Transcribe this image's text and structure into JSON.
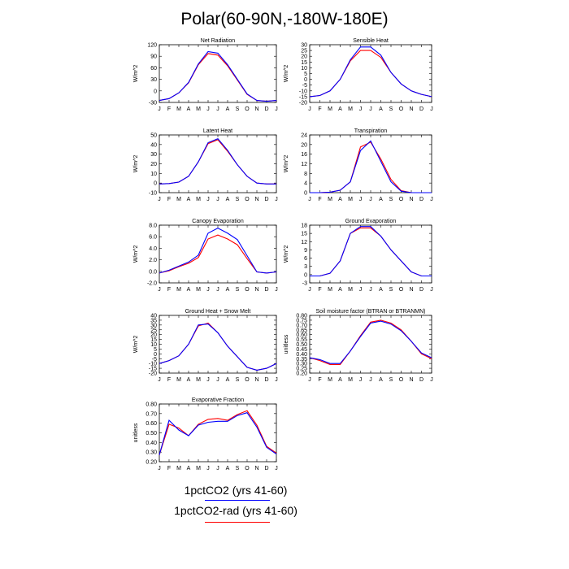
{
  "figure": {
    "title": "Polar(60-90N,-180W-180E)",
    "legend": [
      {
        "label": "1pctCO2 (yrs 41-60)",
        "color": "#0000ff"
      },
      {
        "label": "1pctCO2-rad (yrs 41-60)",
        "color": "#ff0000"
      }
    ]
  },
  "chart_data": [
    {
      "type": "line",
      "title": "Net Radiation",
      "ylabel": "W/m^2",
      "categories": [
        "J",
        "F",
        "M",
        "A",
        "M",
        "J",
        "J",
        "A",
        "S",
        "O",
        "N",
        "D",
        "J"
      ],
      "ylim": [
        -30,
        120
      ],
      "yticks": [
        -30,
        0,
        30,
        60,
        90,
        120
      ],
      "yticklabels": [
        "-30",
        "0",
        "30",
        "60",
        "90",
        "120"
      ],
      "series": [
        {
          "color": "#0000ff",
          "values": [
            -25,
            -20,
            -5,
            22,
            70,
            102,
            98,
            68,
            30,
            -8,
            -25,
            -27,
            -25
          ]
        },
        {
          "color": "#ff0000",
          "values": [
            -25,
            -20,
            -5,
            21,
            68,
            97,
            93,
            65,
            28,
            -9,
            -25,
            -27,
            -25
          ]
        }
      ]
    },
    {
      "type": "line",
      "title": "Sensible Heat",
      "ylabel": "W/m^2",
      "categories": [
        "J",
        "F",
        "M",
        "A",
        "M",
        "J",
        "J",
        "A",
        "S",
        "O",
        "N",
        "D",
        "J"
      ],
      "ylim": [
        -20,
        30
      ],
      "yticks": [
        -20,
        -15,
        -10,
        -5,
        0,
        5,
        10,
        15,
        20,
        25,
        30
      ],
      "yticklabels": [
        "-20",
        "-15",
        "-10",
        "-5",
        "0",
        "5",
        "10",
        "15",
        "20",
        "25",
        "30"
      ],
      "series": [
        {
          "color": "#0000ff",
          "values": [
            -15,
            -14,
            -10,
            0,
            17,
            28,
            28,
            21,
            6,
            -4,
            -10,
            -13,
            -15
          ]
        },
        {
          "color": "#ff0000",
          "values": [
            -15,
            -14,
            -10,
            0,
            16,
            25,
            25,
            19,
            6,
            -4,
            -10,
            -13,
            -15
          ]
        }
      ]
    },
    {
      "type": "line",
      "title": "Latent Heat",
      "ylabel": "W/m^2",
      "categories": [
        "J",
        "F",
        "M",
        "A",
        "M",
        "J",
        "J",
        "A",
        "S",
        "O",
        "N",
        "D",
        "J"
      ],
      "ylim": [
        -10,
        50
      ],
      "yticks": [
        -10,
        0,
        10,
        20,
        30,
        40,
        50
      ],
      "yticklabels": [
        "-10",
        "0",
        "10",
        "20",
        "30",
        "40",
        "50"
      ],
      "series": [
        {
          "color": "#0000ff",
          "values": [
            -1,
            -0.5,
            1,
            7,
            22,
            42,
            46,
            34,
            19,
            7,
            0,
            -1,
            -1
          ]
        },
        {
          "color": "#ff0000",
          "values": [
            -1,
            -0.5,
            1,
            7,
            22,
            41,
            45,
            33,
            19,
            7,
            0,
            -1,
            -1
          ]
        }
      ]
    },
    {
      "type": "line",
      "title": "Transpiration",
      "ylabel": "W/m^2",
      "categories": [
        "J",
        "F",
        "M",
        "A",
        "M",
        "J",
        "J",
        "A",
        "S",
        "O",
        "N",
        "D",
        "J"
      ],
      "ylim": [
        0,
        24
      ],
      "yticks": [
        0,
        4,
        8,
        12,
        16,
        20,
        24
      ],
      "yticklabels": [
        "0",
        "4",
        "8",
        "12",
        "16",
        "20",
        "24"
      ],
      "series": [
        {
          "color": "#0000ff",
          "values": [
            0,
            0,
            0.2,
            1,
            4.5,
            17.5,
            21.5,
            13,
            4.5,
            0.6,
            0,
            0,
            0
          ]
        },
        {
          "color": "#ff0000",
          "values": [
            0,
            0,
            0.2,
            1,
            4.5,
            19,
            21,
            14,
            5.5,
            0.8,
            0,
            0,
            0
          ]
        }
      ]
    },
    {
      "type": "line",
      "title": "Canopy Evaporation",
      "ylabel": "W/m^2",
      "categories": [
        "J",
        "F",
        "M",
        "A",
        "M",
        "J",
        "J",
        "A",
        "S",
        "O",
        "N",
        "D",
        "J"
      ],
      "ylim": [
        -2,
        8
      ],
      "yticks": [
        -2,
        0,
        2,
        4,
        6,
        8
      ],
      "yticklabels": [
        "-2.0",
        "0.0",
        "2.0",
        "4.0",
        "6.0",
        "8.0"
      ],
      "series": [
        {
          "color": "#0000ff",
          "values": [
            -0.3,
            0.2,
            0.9,
            1.6,
            2.8,
            6.6,
            7.5,
            6.6,
            5.5,
            2.7,
            -0.1,
            -0.3,
            -0.1
          ]
        },
        {
          "color": "#ff0000",
          "values": [
            -0.3,
            0.1,
            0.8,
            1.4,
            2.4,
            5.6,
            6.3,
            5.6,
            4.6,
            2.2,
            -0.1,
            -0.3,
            -0.1
          ]
        }
      ]
    },
    {
      "type": "line",
      "title": "Ground Evaporation",
      "ylabel": "W/m^2",
      "categories": [
        "J",
        "F",
        "M",
        "A",
        "M",
        "J",
        "J",
        "A",
        "S",
        "O",
        "N",
        "D",
        "J"
      ],
      "ylim": [
        -3,
        18
      ],
      "yticks": [
        -3,
        0,
        3,
        6,
        9,
        12,
        15,
        18
      ],
      "yticklabels": [
        "-3",
        "0",
        "3",
        "6",
        "9",
        "12",
        "15",
        "18"
      ],
      "series": [
        {
          "color": "#0000ff",
          "values": [
            -0.5,
            -0.5,
            0.5,
            5,
            15,
            17.5,
            17.5,
            14,
            9,
            5,
            1,
            -0.5,
            -0.5
          ]
        },
        {
          "color": "#ff0000",
          "values": [
            -0.5,
            -0.5,
            0.5,
            5,
            15,
            17,
            17,
            14,
            9,
            5,
            1,
            -0.5,
            -0.5
          ]
        }
      ]
    },
    {
      "type": "line",
      "title": "Ground Heat + Snow Melt",
      "ylabel": "W/m^2",
      "categories": [
        "J",
        "F",
        "M",
        "A",
        "M",
        "J",
        "J",
        "A",
        "S",
        "O",
        "N",
        "D",
        "J"
      ],
      "ylim": [
        -20,
        40
      ],
      "yticks": [
        -20,
        -15,
        -10,
        -5,
        0,
        5,
        10,
        15,
        20,
        25,
        30,
        35,
        40
      ],
      "yticklabels": [
        "-20",
        "-15",
        "-10",
        "-5",
        "0",
        "5",
        "10",
        "15",
        "20",
        "25",
        "30",
        "35",
        "40"
      ],
      "series": [
        {
          "color": "#0000ff",
          "values": [
            -10,
            -7,
            -2,
            10,
            30,
            31,
            22,
            8,
            -3,
            -14,
            -17,
            -15,
            -10
          ]
        },
        {
          "color": "#ff0000",
          "values": [
            -10,
            -7,
            -2,
            10,
            29,
            32,
            22,
            8,
            -3,
            -14,
            -17,
            -15,
            -10
          ]
        }
      ]
    },
    {
      "type": "line",
      "title": "Soil moisture factor (BTRAN or BTRANMN)",
      "ylabel": "unitless",
      "categories": [
        "J",
        "F",
        "M",
        "A",
        "M",
        "J",
        "J",
        "A",
        "S",
        "O",
        "N",
        "D",
        "J"
      ],
      "ylim": [
        0.2,
        0.8
      ],
      "yticks": [
        0.2,
        0.25,
        0.3,
        0.35,
        0.4,
        0.45,
        0.5,
        0.55,
        0.6,
        0.65,
        0.7,
        0.75,
        0.8
      ],
      "yticklabels": [
        "0.20",
        "0.25",
        "0.30",
        "0.35",
        "0.40",
        "0.45",
        "0.50",
        "0.55",
        "0.60",
        "0.65",
        "0.70",
        "0.75",
        "0.80"
      ],
      "series": [
        {
          "color": "#0000ff",
          "values": [
            0.36,
            0.34,
            0.3,
            0.3,
            0.43,
            0.58,
            0.72,
            0.74,
            0.71,
            0.64,
            0.53,
            0.41,
            0.36
          ]
        },
        {
          "color": "#ff0000",
          "values": [
            0.36,
            0.33,
            0.29,
            0.29,
            0.43,
            0.59,
            0.73,
            0.75,
            0.72,
            0.65,
            0.53,
            0.4,
            0.35
          ]
        }
      ]
    },
    {
      "type": "line",
      "title": "Evaporative Fraction",
      "ylabel": "unitless",
      "categories": [
        "J",
        "F",
        "M",
        "A",
        "M",
        "J",
        "J",
        "A",
        "S",
        "O",
        "N",
        "D",
        "J"
      ],
      "ylim": [
        0.2,
        0.8
      ],
      "yticks": [
        0.2,
        0.3,
        0.4,
        0.5,
        0.6,
        0.7,
        0.8
      ],
      "yticklabels": [
        "0.20",
        "0.30",
        "0.40",
        "0.50",
        "0.60",
        "0.70",
        "0.80"
      ],
      "series": [
        {
          "color": "#0000ff",
          "values": [
            0.27,
            0.63,
            0.53,
            0.47,
            0.58,
            0.61,
            0.62,
            0.62,
            0.68,
            0.71,
            0.56,
            0.35,
            0.28
          ]
        },
        {
          "color": "#ff0000",
          "values": [
            0.27,
            0.59,
            0.55,
            0.47,
            0.59,
            0.64,
            0.65,
            0.63,
            0.69,
            0.73,
            0.58,
            0.36,
            0.29
          ]
        }
      ]
    }
  ]
}
